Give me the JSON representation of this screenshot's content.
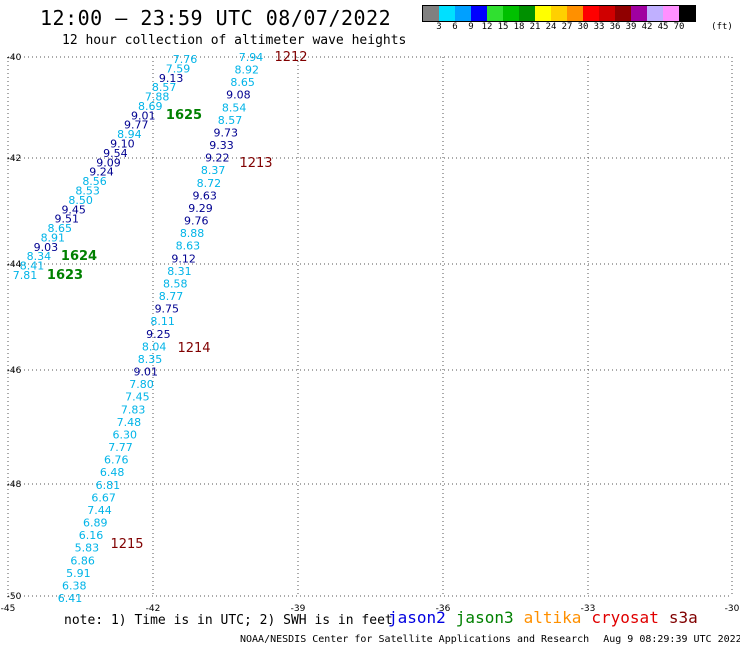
{
  "title": "12:00 – 23:59 UTC 08/07/2022",
  "subtitle": "12 hour collection of altimeter wave heights",
  "legend": {
    "unit": "(ft)",
    "steps": [
      {
        "label": "3",
        "color": "#808080"
      },
      {
        "label": "6",
        "color": "#00e0ff"
      },
      {
        "label": "9",
        "color": "#00a0ff"
      },
      {
        "label": "12",
        "color": "#0000ff"
      },
      {
        "label": "15",
        "color": "#30e030"
      },
      {
        "label": "18",
        "color": "#00c000"
      },
      {
        "label": "21",
        "color": "#009000"
      },
      {
        "label": "24",
        "color": "#ffff00"
      },
      {
        "label": "27",
        "color": "#ffd000"
      },
      {
        "label": "30",
        "color": "#ff9000"
      },
      {
        "label": "33",
        "color": "#ff0000"
      },
      {
        "label": "36",
        "color": "#d00000"
      },
      {
        "label": "39",
        "color": "#900000"
      },
      {
        "label": "42",
        "color": "#a000a0"
      },
      {
        "label": "45",
        "color": "#c0b0ff"
      },
      {
        "label": "70",
        "color": "#ff90ff"
      },
      {
        "label": "",
        "color": "#000000"
      }
    ]
  },
  "colors": {
    "cyan": "#00b4e8",
    "navy": "#000090",
    "dark_red": "#800000",
    "green": "#008000",
    "grid": "#555555"
  },
  "axes": {
    "lon_ticks": [
      "-45",
      "-42",
      "-39",
      "-36",
      "-33",
      "-30"
    ],
    "lat_ticks": [
      "-40",
      "-42",
      "-44",
      "-46",
      "-48",
      "-50"
    ]
  },
  "tracks": {
    "left": [
      {
        "v": "7.76",
        "c": "cyan"
      },
      {
        "v": "7.59",
        "c": "cyan"
      },
      {
        "v": "9.13",
        "c": "navy"
      },
      {
        "v": "8.57",
        "c": "cyan"
      },
      {
        "v": "7.88",
        "c": "cyan"
      },
      {
        "v": "8.69",
        "c": "cyan"
      },
      {
        "v": "9.01",
        "c": "navy"
      },
      {
        "v": "9.77",
        "c": "navy"
      },
      {
        "v": "8.94",
        "c": "cyan"
      },
      {
        "v": "9.10",
        "c": "navy"
      },
      {
        "v": "9.54",
        "c": "navy"
      },
      {
        "v": "9.09",
        "c": "navy"
      },
      {
        "v": "9.24",
        "c": "navy"
      },
      {
        "v": "8.56",
        "c": "cyan"
      },
      {
        "v": "8.53",
        "c": "cyan"
      },
      {
        "v": "8.50",
        "c": "cyan"
      },
      {
        "v": "9.45",
        "c": "navy"
      },
      {
        "v": "9.51",
        "c": "navy"
      },
      {
        "v": "8.65",
        "c": "cyan"
      },
      {
        "v": "8.91",
        "c": "cyan"
      },
      {
        "v": "9.03",
        "c": "navy"
      },
      {
        "v": "8.34",
        "c": "cyan"
      },
      {
        "v": "8.41",
        "c": "cyan"
      },
      {
        "v": "7.81",
        "c": "cyan"
      }
    ],
    "right": [
      {
        "v": "7.94",
        "c": "cyan"
      },
      {
        "v": "8.92",
        "c": "cyan"
      },
      {
        "v": "8.65",
        "c": "cyan"
      },
      {
        "v": "9.08",
        "c": "navy"
      },
      {
        "v": "8.54",
        "c": "cyan"
      },
      {
        "v": "8.57",
        "c": "cyan"
      },
      {
        "v": "9.73",
        "c": "navy"
      },
      {
        "v": "9.33",
        "c": "navy"
      },
      {
        "v": "9.22",
        "c": "navy"
      },
      {
        "v": "8.37",
        "c": "cyan"
      },
      {
        "v": "8.72",
        "c": "cyan"
      },
      {
        "v": "9.63",
        "c": "navy"
      },
      {
        "v": "9.29",
        "c": "navy"
      },
      {
        "v": "9.76",
        "c": "navy"
      },
      {
        "v": "8.88",
        "c": "cyan"
      },
      {
        "v": "8.63",
        "c": "cyan"
      },
      {
        "v": "9.12",
        "c": "navy"
      },
      {
        "v": "8.31",
        "c": "cyan"
      },
      {
        "v": "8.58",
        "c": "cyan"
      },
      {
        "v": "8.77",
        "c": "cyan"
      },
      {
        "v": "9.75",
        "c": "navy"
      },
      {
        "v": "8.11",
        "c": "cyan"
      },
      {
        "v": "9.25",
        "c": "navy"
      },
      {
        "v": "8.04",
        "c": "cyan"
      },
      {
        "v": "8.35",
        "c": "cyan"
      },
      {
        "v": "9.01",
        "c": "navy"
      },
      {
        "v": "7.80",
        "c": "cyan"
      },
      {
        "v": "7.45",
        "c": "cyan"
      },
      {
        "v": "7.83",
        "c": "cyan"
      },
      {
        "v": "7.48",
        "c": "cyan"
      },
      {
        "v": "6.30",
        "c": "cyan"
      },
      {
        "v": "7.77",
        "c": "cyan"
      },
      {
        "v": "6.76",
        "c": "cyan"
      },
      {
        "v": "6.48",
        "c": "cyan"
      },
      {
        "v": "6.81",
        "c": "cyan"
      },
      {
        "v": "6.67",
        "c": "cyan"
      },
      {
        "v": "7.44",
        "c": "cyan"
      },
      {
        "v": "6.89",
        "c": "cyan"
      },
      {
        "v": "6.16",
        "c": "cyan"
      },
      {
        "v": "5.83",
        "c": "cyan"
      },
      {
        "v": "6.86",
        "c": "cyan"
      },
      {
        "v": "5.91",
        "c": "cyan"
      },
      {
        "v": "6.38",
        "c": "cyan"
      },
      {
        "v": "6.41",
        "c": "cyan"
      }
    ]
  },
  "time_labels": [
    {
      "t": "1212",
      "c": "dark_red"
    },
    {
      "t": "1625",
      "c": "green"
    },
    {
      "t": "1213",
      "c": "dark_red"
    },
    {
      "t": "1624",
      "c": "green"
    },
    {
      "t": "1623",
      "c": "green"
    },
    {
      "t": "1214",
      "c": "dark_red"
    },
    {
      "t": "1215",
      "c": "dark_red"
    }
  ],
  "note": "note: 1) Time is in UTC; 2) SWH is in feet",
  "satellites": [
    {
      "name": "jason2",
      "color": "#0000e0"
    },
    {
      "name": "jason3",
      "color": "#008000"
    },
    {
      "name": "altika",
      "color": "#ff9000"
    },
    {
      "name": "cryosat",
      "color": "#e00000"
    },
    {
      "name": "s3a",
      "color": "#800000"
    }
  ],
  "credit": "NOAA/NESDIS Center for Satellite Applications and Research",
  "timestamp": "Aug  9 08:29:39 UTC 2022"
}
